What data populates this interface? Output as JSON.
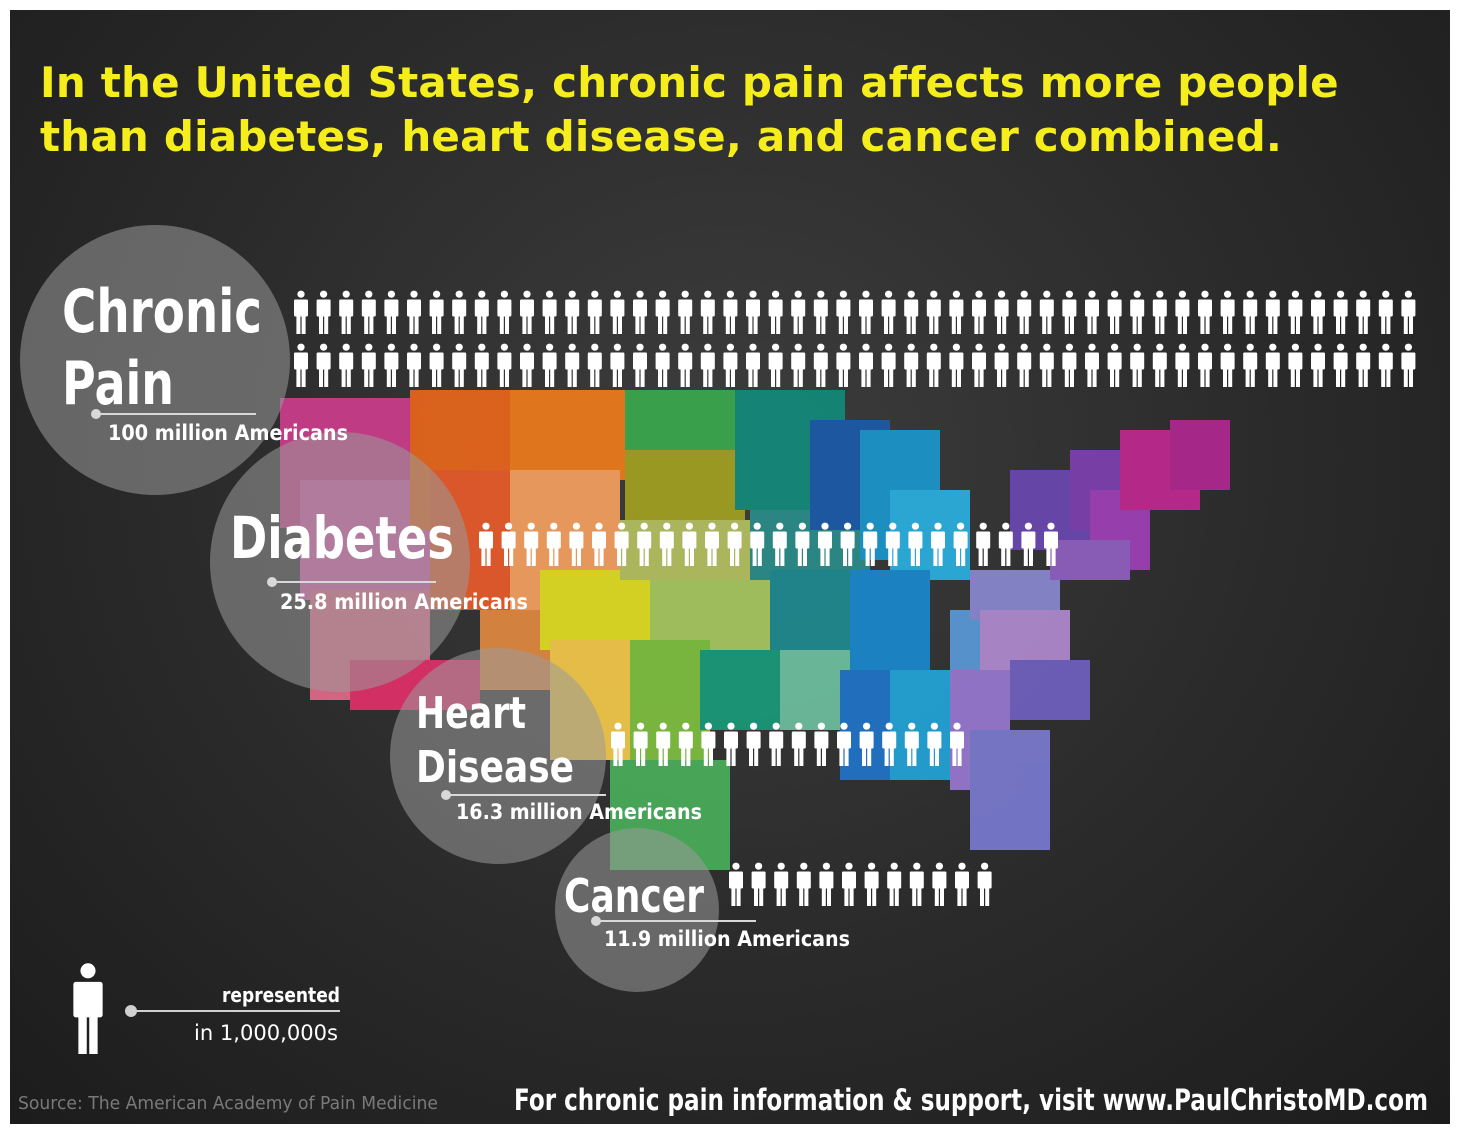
{
  "headline": "In the United States, chronic pain affects more people than diabetes, heart disease, and cancer combined.",
  "chart_data": {
    "type": "pictograph",
    "unit_value_millions": 1,
    "series": [
      {
        "name_lines": [
          "Chronic",
          "Pain"
        ],
        "value_label": "100 million Americans",
        "value": 100
      },
      {
        "name_lines": [
          "Diabetes"
        ],
        "value_label": "25.8 million Americans",
        "value": 25.8
      },
      {
        "name_lines": [
          "Heart",
          "Disease"
        ],
        "value_label": "16.3 million Americans",
        "value": 16.3
      },
      {
        "name_lines": [
          "Cancer"
        ],
        "value_label": "11.9 million Americans",
        "value": 11.9
      }
    ]
  },
  "legend": {
    "line1": "represented",
    "line2": "in 1,000,000s"
  },
  "source": "Source: The American Academy of Pain Medicine",
  "footer": "For chronic pain information & support, visit www.PaulChristoMD.com"
}
